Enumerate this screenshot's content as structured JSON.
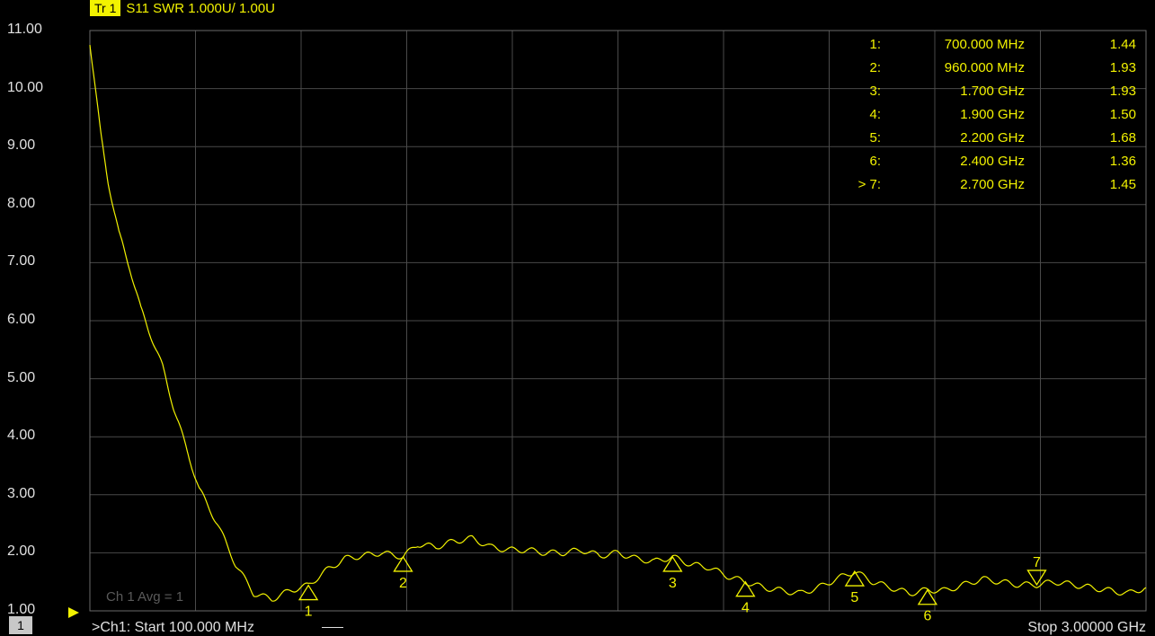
{
  "trace": {
    "tag": "Tr 1",
    "title": "S11 SWR 1.000U/  1.00U"
  },
  "y_ticks": [
    "11.00",
    "10.00",
    "9.00",
    "8.00",
    "7.00",
    "6.00",
    "5.00",
    "4.00",
    "3.00",
    "2.00",
    "1.00"
  ],
  "markers": [
    {
      "id": "1:",
      "freq": "700.000 MHz",
      "value": "1.44"
    },
    {
      "id": "2:",
      "freq": "960.000 MHz",
      "value": "1.93"
    },
    {
      "id": "3:",
      "freq": "1.700 GHz",
      "value": "1.93"
    },
    {
      "id": "4:",
      "freq": "1.900 GHz",
      "value": "1.50"
    },
    {
      "id": "5:",
      "freq": "2.200 GHz",
      "value": "1.68"
    },
    {
      "id": "6:",
      "freq": "2.400 GHz",
      "value": "1.36"
    },
    {
      "id": "> 7:",
      "freq": "2.700 GHz",
      "value": "1.45"
    }
  ],
  "avg_label": "Ch 1 Avg =     1",
  "channel_box": "1",
  "start_label": ">Ch1:  Start  100.000 MHz",
  "stop_label": "Stop  3.00000 GHz",
  "colors": {
    "trace": "#f2f200",
    "grid": "#4a4a4a",
    "bg": "#000000"
  },
  "chart_data": {
    "type": "line",
    "xlim": [
      100,
      3000
    ],
    "ylim": [
      1,
      11
    ],
    "x_unit": "MHz",
    "grid": true,
    "series": [
      {
        "x": [
          100,
          130,
          150,
          180,
          210,
          240,
          270,
          300,
          330,
          360,
          400,
          450,
          500,
          550,
          600,
          650,
          700,
          750,
          800,
          850,
          900,
          960,
          1000,
          1050,
          1100,
          1150,
          1200,
          1250,
          1300,
          1350,
          1400,
          1450,
          1500,
          1550,
          1600,
          1650,
          1700,
          1750,
          1800,
          1850,
          1900,
          1950,
          2000,
          2050,
          2100,
          2150,
          2200,
          2250,
          2300,
          2350,
          2400,
          2450,
          2500,
          2550,
          2600,
          2650,
          2700,
          2750,
          2800,
          2850,
          2900,
          2950,
          3000
        ],
        "y": [
          10.8,
          9.2,
          8.4,
          7.5,
          6.9,
          6.2,
          5.7,
          5.2,
          4.5,
          3.9,
          3.1,
          2.5,
          1.8,
          1.3,
          1.2,
          1.35,
          1.44,
          1.7,
          1.9,
          1.95,
          2.0,
          1.93,
          2.15,
          2.1,
          2.2,
          2.25,
          2.1,
          2.05,
          2.05,
          2.0,
          2.0,
          2.05,
          1.95,
          2.0,
          1.9,
          1.85,
          1.93,
          1.8,
          1.75,
          1.6,
          1.5,
          1.4,
          1.35,
          1.3,
          1.4,
          1.55,
          1.68,
          1.5,
          1.4,
          1.3,
          1.36,
          1.35,
          1.45,
          1.55,
          1.5,
          1.45,
          1.45,
          1.5,
          1.45,
          1.4,
          1.35,
          1.3,
          1.4
        ]
      }
    ],
    "markers": [
      {
        "label": "1",
        "x": 700,
        "y": 1.44,
        "dir": "up"
      },
      {
        "label": "2",
        "x": 960,
        "y": 1.93,
        "dir": "up"
      },
      {
        "label": "3",
        "x": 1700,
        "y": 1.93,
        "dir": "up"
      },
      {
        "label": "4",
        "x": 1900,
        "y": 1.5,
        "dir": "up"
      },
      {
        "label": "5",
        "x": 2200,
        "y": 1.68,
        "dir": "up"
      },
      {
        "label": "6",
        "x": 2400,
        "y": 1.36,
        "dir": "up"
      },
      {
        "label": "7",
        "x": 2700,
        "y": 1.45,
        "dir": "down"
      }
    ]
  }
}
